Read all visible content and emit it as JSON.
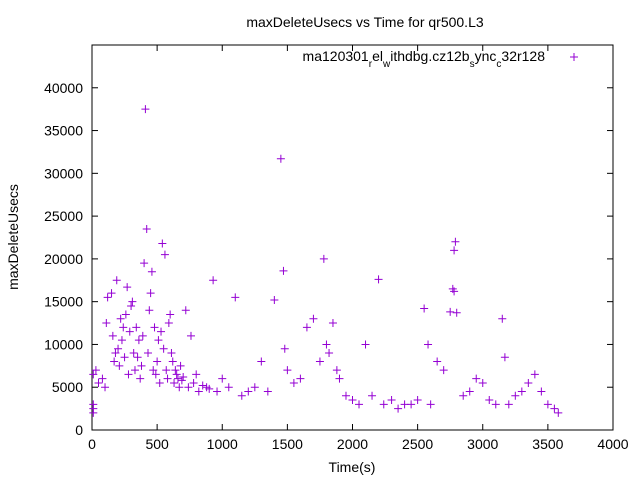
{
  "chart_data": {
    "type": "scatter",
    "title": "maxDeleteUsecs vs Time for qr500.L3",
    "xlabel": "Time(s)",
    "ylabel": "maxDeleteUsecs",
    "xlim": [
      0,
      4000
    ],
    "ylim": [
      0,
      45000
    ],
    "x_ticks": [
      "0",
      "500",
      "1000",
      "1500",
      "2000",
      "2500",
      "3000",
      "3500",
      "4000"
    ],
    "y_ticks": [
      "0",
      "5000",
      "10000",
      "15000",
      "20000",
      "25000",
      "30000",
      "35000",
      "40000"
    ],
    "grid": false,
    "legend_position": "top-right",
    "marker": "+",
    "marker_color": "#9400d3",
    "series": [
      {
        "name": "ma120301_rel_withdbg.cz12b_sync_c32r128",
        "legend_parts": [
          "ma120301",
          "r",
          "el",
          "w",
          "ithdbg.cz12b",
          "s",
          "ync",
          "c",
          "32r128"
        ],
        "x": [
          10,
          10,
          10,
          10,
          30,
          50,
          80,
          100,
          110,
          120,
          150,
          160,
          170,
          180,
          190,
          200,
          210,
          220,
          230,
          240,
          250,
          260,
          270,
          280,
          290,
          300,
          310,
          320,
          330,
          340,
          350,
          360,
          370,
          380,
          390,
          400,
          410,
          420,
          430,
          440,
          450,
          460,
          470,
          480,
          490,
          500,
          510,
          520,
          530,
          540,
          550,
          560,
          570,
          580,
          590,
          600,
          610,
          620,
          630,
          640,
          650,
          660,
          670,
          680,
          690,
          700,
          720,
          740,
          760,
          780,
          800,
          820,
          850,
          880,
          900,
          930,
          960,
          1000,
          1050,
          1100,
          1150,
          1200,
          1250,
          1300,
          1350,
          1400,
          1450,
          1470,
          1480,
          1500,
          1550,
          1600,
          1650,
          1700,
          1750,
          1780,
          1800,
          1820,
          1850,
          1880,
          1900,
          1950,
          2000,
          2050,
          2100,
          2150,
          2200,
          2240,
          2300,
          2350,
          2400,
          2450,
          2500,
          2550,
          2580,
          2600,
          2650,
          2700,
          2750,
          2770,
          2780,
          2780,
          2790,
          2800,
          2850,
          2900,
          2950,
          3000,
          3050,
          3100,
          3150,
          3170,
          3200,
          3250,
          3300,
          3350,
          3400,
          3450,
          3500,
          3550,
          3580
        ],
        "y": [
          2000,
          2500,
          3000,
          6500,
          7000,
          5500,
          6000,
          5000,
          12500,
          15500,
          16000,
          11000,
          8000,
          9000,
          17500,
          9500,
          7500,
          13000,
          10500,
          12000,
          8500,
          13500,
          16700,
          6500,
          11500,
          14500,
          15000,
          9000,
          7000,
          12000,
          8500,
          10500,
          6000,
          7500,
          11000,
          19500,
          37500,
          23500,
          9000,
          14000,
          16000,
          18500,
          7000,
          12000,
          6500,
          8000,
          10500,
          5500,
          11500,
          21800,
          9500,
          20500,
          7000,
          6000,
          12500,
          13500,
          9000,
          8000,
          5500,
          7000,
          6500,
          6000,
          5000,
          7500,
          5800,
          6200,
          14000,
          5000,
          11000,
          5500,
          6500,
          4500,
          5200,
          5000,
          4800,
          17500,
          4500,
          6000,
          5000,
          15500,
          4000,
          4500,
          5000,
          8000,
          4500,
          15200,
          31700,
          18600,
          9500,
          7000,
          5500,
          6000,
          12000,
          13000,
          8000,
          20000,
          10000,
          9000,
          12500,
          7000,
          6000,
          4000,
          3500,
          3000,
          10000,
          4000,
          17600,
          3000,
          3500,
          2500,
          3000,
          3000,
          3500,
          14200,
          10000,
          3000,
          8000,
          7000,
          13800,
          16500,
          16200,
          21000,
          22000,
          13700,
          4000,
          4500,
          6000,
          5500,
          3500,
          3000,
          13000,
          8500,
          3000,
          4000,
          4500,
          5500,
          6500,
          4500,
          3000,
          2500,
          2000
        ]
      }
    ]
  }
}
